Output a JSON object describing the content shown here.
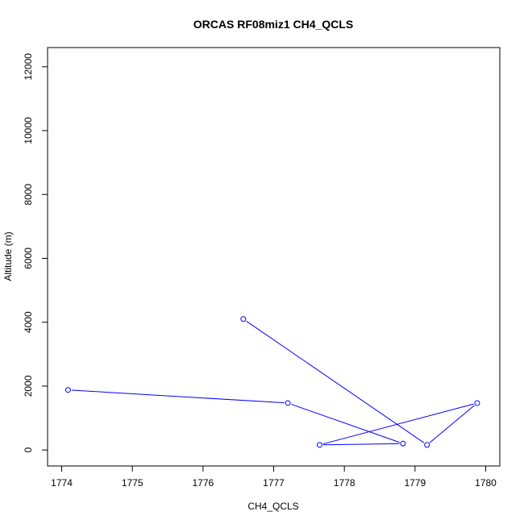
{
  "chart_data": {
    "type": "line",
    "title": "ORCAS RF08miz1 CH4_QCLS",
    "xlabel": "CH4_QCLS",
    "ylabel": "Altitude (m)",
    "xlim": [
      1773.8,
      1780.2
    ],
    "ylim": [
      -500,
      12600
    ],
    "xticks": [
      1774,
      1775,
      1776,
      1777,
      1778,
      1779,
      1780
    ],
    "yticks": [
      0,
      2000,
      4000,
      6000,
      8000,
      10000,
      12000
    ],
    "grid": false,
    "series": [
      {
        "color": "#0000ff",
        "points": [
          {
            "x": 1776.57,
            "y": 4100
          },
          {
            "x": 1779.17,
            "y": 160
          },
          {
            "x": 1779.88,
            "y": 1470
          },
          {
            "x": 1777.65,
            "y": 160
          },
          {
            "x": 1778.83,
            "y": 200
          },
          {
            "x": 1777.2,
            "y": 1470
          },
          {
            "x": 1774.09,
            "y": 1880
          }
        ]
      }
    ]
  }
}
